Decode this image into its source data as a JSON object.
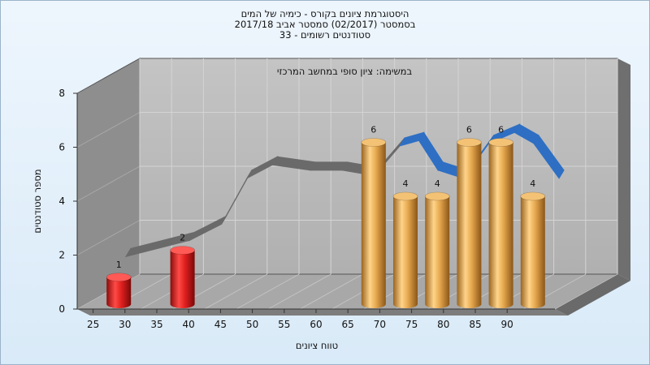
{
  "chart_data": {
    "type": "bar",
    "title_lines": [
      "היסטוגרמת ציונים בקורס - כימיה של המים",
      "בסמסטר  (02/2017)  סמסטר אביב 2017/18",
      "סטודנטים רשומים - 33"
    ],
    "annotation": "במשימה: ציון סופי במחשב המרכזי",
    "xlabel": "טווח ציונים",
    "ylabel": "מספר סטודנטים",
    "ylim": [
      0,
      8
    ],
    "yticks": [
      0,
      2,
      4,
      6,
      8
    ],
    "xticks": [
      25,
      30,
      35,
      40,
      45,
      50,
      55,
      60,
      65,
      70,
      75,
      80,
      85,
      90
    ],
    "grid": true,
    "bars": [
      {
        "x": 27.5,
        "value": 1,
        "color": "red"
      },
      {
        "x": 37.5,
        "value": 2,
        "color": "red"
      },
      {
        "x": 67.5,
        "value": 6,
        "color": "gold"
      },
      {
        "x": 72.5,
        "value": 4,
        "color": "gold"
      },
      {
        "x": 77.5,
        "value": 4,
        "color": "gold"
      },
      {
        "x": 82.5,
        "value": 6,
        "color": "gold"
      },
      {
        "x": 87.5,
        "value": 6,
        "color": "gold"
      },
      {
        "x": 92.5,
        "value": 4,
        "color": "gold"
      }
    ],
    "trend": [
      {
        "x": 26,
        "y": 1.6
      },
      {
        "x": 36,
        "y": 2.2
      },
      {
        "x": 41,
        "y": 2.8
      },
      {
        "x": 45,
        "y": 4.5
      },
      {
        "x": 49,
        "y": 5.0
      },
      {
        "x": 55,
        "y": 4.8
      },
      {
        "x": 60,
        "y": 4.8
      },
      {
        "x": 65,
        "y": 4.6
      },
      {
        "x": 69,
        "y": 5.7
      },
      {
        "x": 72,
        "y": 5.9
      },
      {
        "x": 75,
        "y": 4.8
      },
      {
        "x": 79,
        "y": 4.5
      },
      {
        "x": 83,
        "y": 5.8
      },
      {
        "x": 87,
        "y": 6.2
      },
      {
        "x": 90,
        "y": 5.8
      },
      {
        "x": 94,
        "y": 4.5
      }
    ],
    "colors": {
      "wall_back": "#b8b8b8",
      "wall_left": "#8f8f8f",
      "floor": "#a9a9a9",
      "red_bar": "#e0201f",
      "gold_bar": "#e6a84e",
      "trend_gray": "#6a6a6a",
      "trend_blue": "#2e6fc4"
    }
  }
}
